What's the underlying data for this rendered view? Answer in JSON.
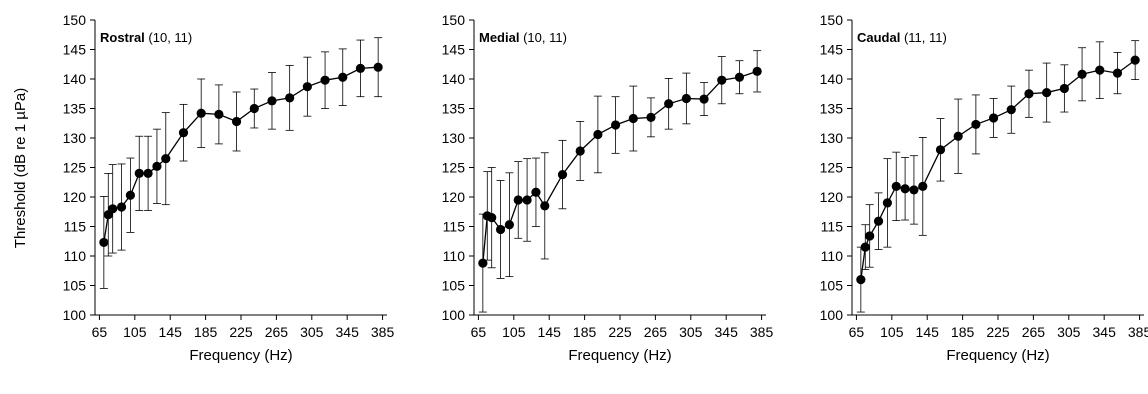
{
  "figure": {
    "ylabel": "Threshold (dB re 1 µPa)",
    "xlabel": "Frequency (Hz)"
  },
  "chart_data": [
    {
      "type": "line",
      "title_bold": "Rostral",
      "title_rest": " (10, 11)",
      "xlabel": "Frequency (Hz)",
      "ylabel": "Threshold (dB re 1 µPa)",
      "xlim": [
        60,
        390
      ],
      "ylim": [
        100,
        150
      ],
      "xticks": [
        65,
        105,
        145,
        185,
        225,
        265,
        305,
        345,
        385
      ],
      "yticks": [
        100,
        105,
        110,
        115,
        120,
        125,
        130,
        135,
        140,
        145,
        150
      ],
      "x": [
        70,
        75,
        80,
        90,
        100,
        110,
        120,
        130,
        140,
        160,
        180,
        200,
        220,
        240,
        260,
        280,
        300,
        320,
        340,
        360,
        380
      ],
      "y": [
        112.3,
        117.0,
        118.0,
        118.3,
        120.3,
        124.0,
        124.0,
        125.2,
        126.5,
        130.9,
        134.2,
        134.0,
        132.8,
        135.0,
        136.3,
        136.8,
        138.7,
        139.8,
        140.3,
        141.8,
        142.0
      ],
      "err": [
        7.8,
        7.0,
        7.5,
        7.3,
        6.3,
        6.3,
        6.3,
        6.3,
        7.8,
        4.8,
        5.8,
        5.0,
        5.0,
        3.3,
        4.8,
        5.5,
        5.0,
        4.8,
        4.8,
        4.8,
        5.0
      ]
    },
    {
      "type": "line",
      "title_bold": "Medial",
      "title_rest": " (10, 11)",
      "xlabel": "Frequency (Hz)",
      "ylabel": "",
      "xlim": [
        60,
        390
      ],
      "ylim": [
        100,
        150
      ],
      "xticks": [
        65,
        105,
        145,
        185,
        225,
        265,
        305,
        345,
        385
      ],
      "yticks": [
        100,
        105,
        110,
        115,
        120,
        125,
        130,
        135,
        140,
        145,
        150
      ],
      "x": [
        70,
        75,
        80,
        90,
        100,
        110,
        120,
        130,
        140,
        160,
        180,
        200,
        220,
        240,
        260,
        280,
        300,
        320,
        340,
        360,
        380
      ],
      "y": [
        108.8,
        116.8,
        116.5,
        114.5,
        115.3,
        119.5,
        119.5,
        120.8,
        118.5,
        123.8,
        127.8,
        130.6,
        132.2,
        133.3,
        133.5,
        135.8,
        136.7,
        136.6,
        139.8,
        140.3,
        141.3
      ],
      "err": [
        8.3,
        7.5,
        8.5,
        8.3,
        8.8,
        6.5,
        7.0,
        5.8,
        9.0,
        5.8,
        5.0,
        6.5,
        4.8,
        5.5,
        3.3,
        4.3,
        4.3,
        2.8,
        4.0,
        2.8,
        3.5
      ]
    },
    {
      "type": "line",
      "title_bold": "Caudal",
      "title_rest": " (11, 11)",
      "xlabel": "Frequency (Hz)",
      "ylabel": "",
      "xlim": [
        60,
        390
      ],
      "ylim": [
        100,
        150
      ],
      "xticks": [
        65,
        105,
        145,
        185,
        225,
        265,
        305,
        345,
        385
      ],
      "yticks": [
        100,
        105,
        110,
        115,
        120,
        125,
        130,
        135,
        140,
        145,
        150
      ],
      "x": [
        70,
        75,
        80,
        90,
        100,
        110,
        120,
        130,
        140,
        160,
        180,
        200,
        220,
        240,
        260,
        280,
        300,
        320,
        340,
        360,
        380
      ],
      "y": [
        106.0,
        111.5,
        113.4,
        115.9,
        119.0,
        121.8,
        121.4,
        121.2,
        121.8,
        128.0,
        130.3,
        132.3,
        133.4,
        134.8,
        137.5,
        137.7,
        138.4,
        140.8,
        141.5,
        141.0,
        143.2
      ],
      "err": [
        5.5,
        3.8,
        5.3,
        4.8,
        7.5,
        5.8,
        5.3,
        5.8,
        8.3,
        5.3,
        6.3,
        5.0,
        3.3,
        4.0,
        4.0,
        5.0,
        4.0,
        4.5,
        4.8,
        3.5,
        3.3
      ]
    }
  ]
}
